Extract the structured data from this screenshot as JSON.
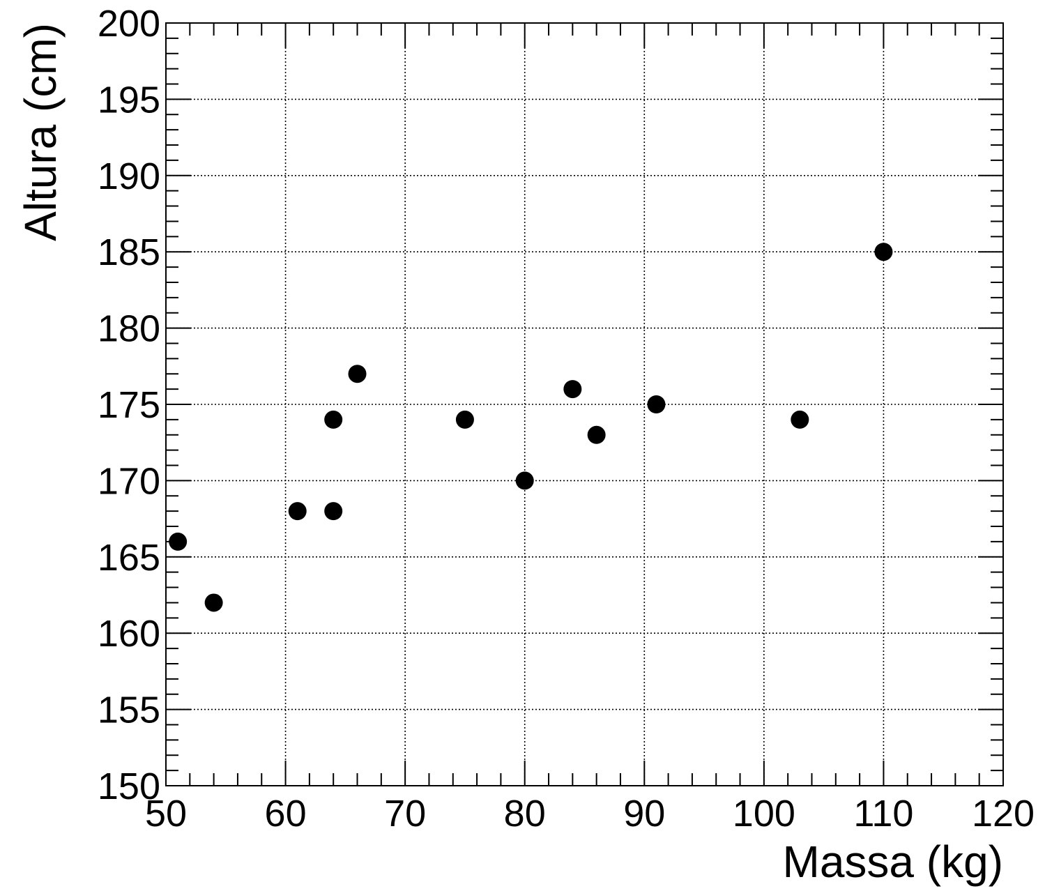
{
  "colors": {
    "background": "#ffffff",
    "axis": "#000000",
    "grid": "#000000",
    "marker": "#000000"
  },
  "chart_data": {
    "type": "scatter",
    "title": "",
    "xlabel": "Massa (kg)",
    "ylabel": "Altura (cm)",
    "xlim": [
      50,
      120
    ],
    "ylim": [
      150,
      200
    ],
    "x_major_step": 10,
    "x_minor_step": 2,
    "y_major_step": 5,
    "y_minor_step": 1,
    "grid": true,
    "grid_style": "dotted",
    "x_tick_labels": [
      "50",
      "60",
      "70",
      "80",
      "90",
      "100",
      "110",
      "120"
    ],
    "y_tick_labels": [
      "150",
      "155",
      "160",
      "165",
      "170",
      "175",
      "180",
      "185",
      "190",
      "195",
      "200"
    ],
    "series": [
      {
        "marker": "filled-circle",
        "points": [
          {
            "x": 51,
            "y": 166
          },
          {
            "x": 54,
            "y": 162
          },
          {
            "x": 61,
            "y": 168
          },
          {
            "x": 64,
            "y": 168
          },
          {
            "x": 64,
            "y": 174
          },
          {
            "x": 66,
            "y": 177
          },
          {
            "x": 75,
            "y": 174
          },
          {
            "x": 80,
            "y": 170
          },
          {
            "x": 84,
            "y": 176
          },
          {
            "x": 86,
            "y": 173
          },
          {
            "x": 91,
            "y": 175
          },
          {
            "x": 103,
            "y": 174
          },
          {
            "x": 110,
            "y": 185
          }
        ]
      }
    ]
  }
}
